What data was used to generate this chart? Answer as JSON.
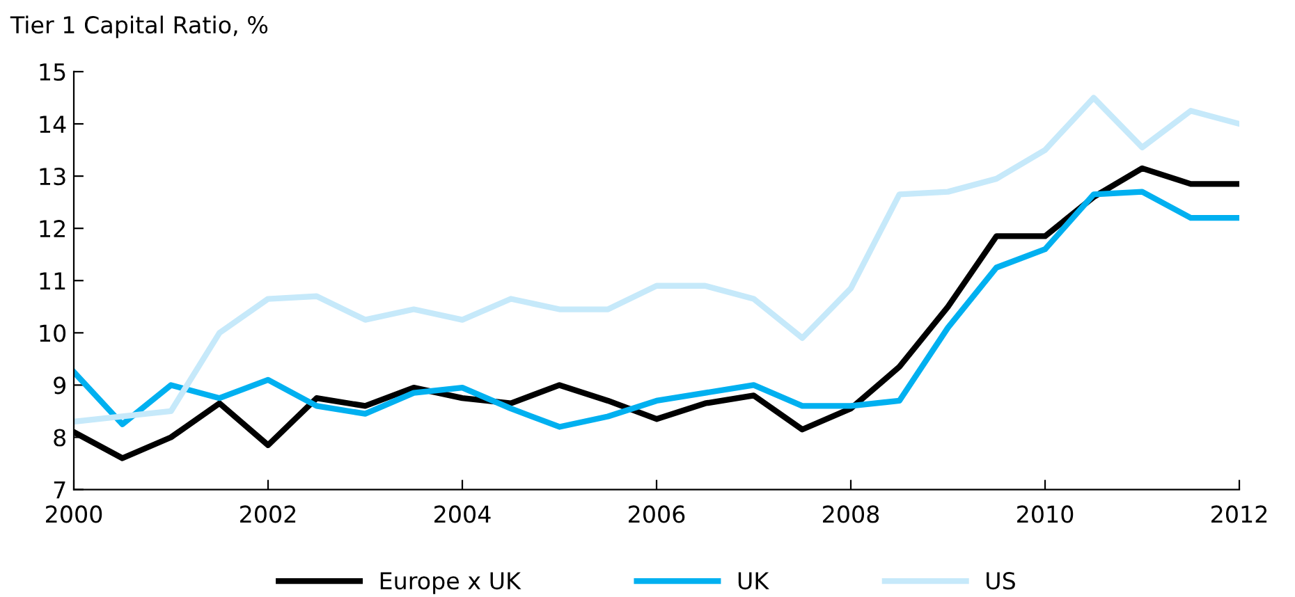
{
  "chart_data": {
    "type": "line",
    "ylabel": "Tier 1 Capital Ratio, %",
    "x": [
      2000,
      2000.5,
      2001,
      2001.5,
      2002,
      2002.5,
      2003,
      2003.5,
      2004,
      2004.5,
      2005,
      2005.5,
      2006,
      2006.5,
      2007,
      2007.5,
      2008,
      2008.5,
      2009,
      2009.5,
      2010,
      2010.5,
      2011,
      2011.5,
      2012
    ],
    "series": [
      {
        "name": "Europe x UK",
        "color": "#000000",
        "values": [
          8.1,
          7.6,
          8.0,
          8.65,
          7.85,
          8.75,
          8.6,
          8.95,
          8.75,
          8.65,
          9.0,
          8.7,
          8.35,
          8.65,
          8.8,
          8.15,
          8.55,
          9.35,
          10.5,
          11.85,
          11.85,
          12.6,
          13.15,
          12.85,
          12.85
        ]
      },
      {
        "name": "UK",
        "color": "#00b0f0",
        "values": [
          9.25,
          8.25,
          9.0,
          8.75,
          9.1,
          8.6,
          8.45,
          8.85,
          8.95,
          8.55,
          8.2,
          8.4,
          8.7,
          8.85,
          9.0,
          8.6,
          8.6,
          8.7,
          10.1,
          11.25,
          11.6,
          12.65,
          12.7,
          12.2,
          12.2
        ]
      },
      {
        "name": "US",
        "color": "#c6e9fa",
        "values": [
          8.3,
          8.4,
          8.5,
          10.0,
          10.65,
          10.7,
          10.25,
          10.45,
          10.25,
          10.65,
          10.45,
          10.45,
          10.9,
          10.9,
          10.65,
          9.9,
          10.85,
          12.65,
          12.7,
          12.95,
          13.5,
          14.5,
          13.55,
          14.25,
          14.0
        ]
      }
    ],
    "xlim": [
      2000,
      2012
    ],
    "xticks": [
      2000,
      2002,
      2004,
      2006,
      2008,
      2010,
      2012
    ],
    "ylim": [
      7,
      15
    ],
    "yticks": [
      7,
      8,
      9,
      10,
      11,
      12,
      13,
      14,
      15
    ],
    "grid": false,
    "legend": "bottom",
    "marker": "none",
    "line_style": "solid"
  }
}
